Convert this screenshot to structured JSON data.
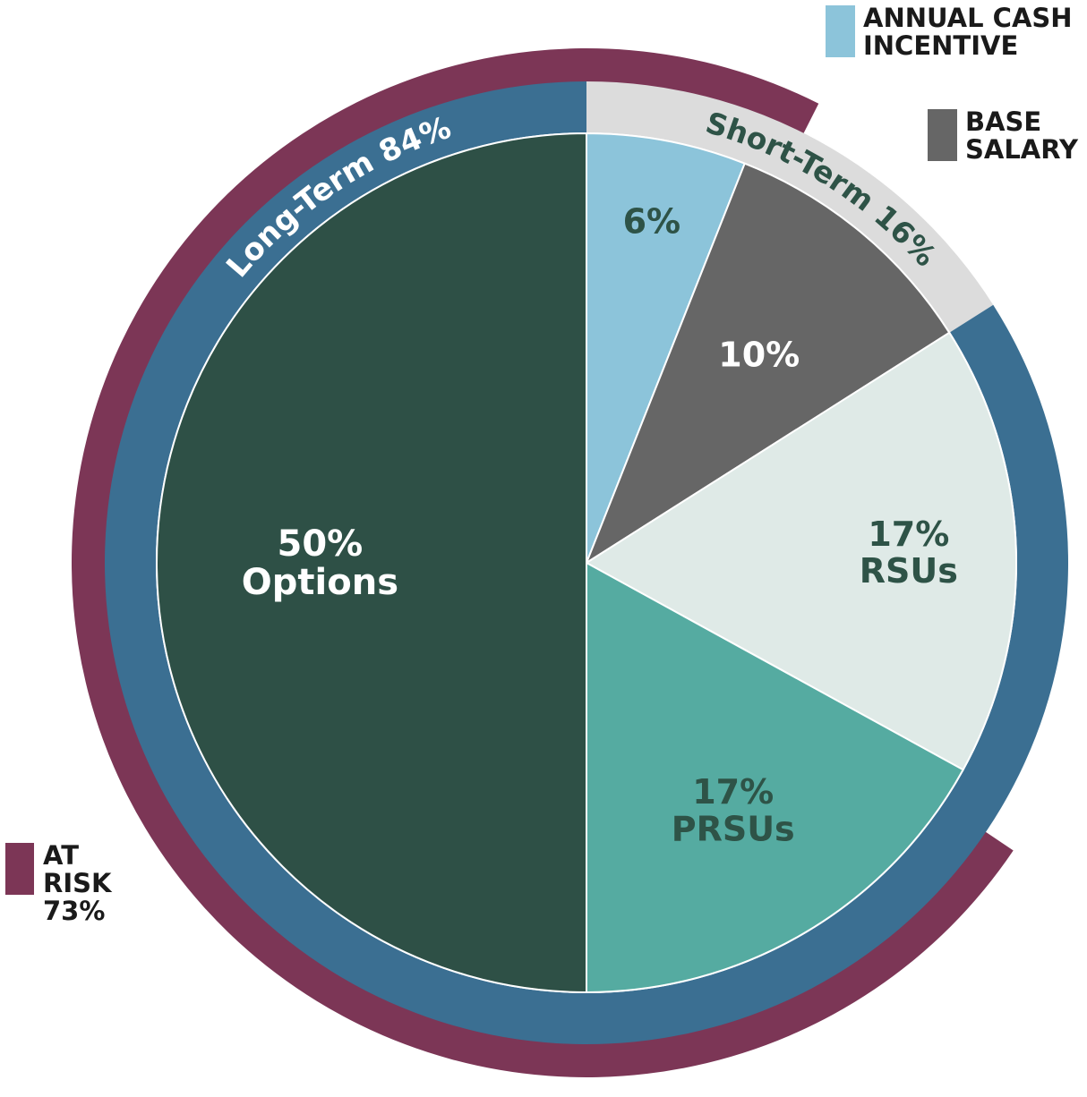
{
  "chart_data": {
    "type": "pie",
    "title": "",
    "slices": [
      {
        "name": "Annual Cash Incentive",
        "value": 6,
        "label_lines": [
          "6%"
        ],
        "color": "#8cc4da",
        "text_color": "#2e5347"
      },
      {
        "name": "Base Salary",
        "value": 10,
        "label_lines": [
          "10%"
        ],
        "color": "#666666",
        "text_color": "#ffffff"
      },
      {
        "name": "RSUs",
        "value": 17,
        "label_lines": [
          "17%",
          "RSUs"
        ],
        "color": "#dfeae7",
        "text_color": "#2e5347"
      },
      {
        "name": "PRSUs",
        "value": 17,
        "label_lines": [
          "17%",
          "PRSUs"
        ],
        "color": "#55aba1",
        "text_color": "#2e5347"
      },
      {
        "name": "Options",
        "value": 50,
        "label_lines": [
          "50%",
          "Options"
        ],
        "color": "#2e5046",
        "text_color": "#ffffff"
      }
    ],
    "rings": {
      "short_term": {
        "label": "Short-Term 16%",
        "value": 16,
        "color": "#dcdcdc",
        "text_color": "#2e5347"
      },
      "long_term": {
        "label": "Long-Term 84%",
        "value": 84,
        "color": "#3b6f92",
        "text_color": "#ffffff"
      },
      "at_risk": {
        "value": 73,
        "color": "#7c3656"
      }
    },
    "legend": [
      {
        "lines": [
          "ANNUAL CASH",
          "INCENTIVE"
        ],
        "color": "#8cc4da"
      },
      {
        "lines": [
          "BASE",
          "SALARY"
        ],
        "color": "#666666"
      },
      {
        "lines": [
          "AT",
          "RISK",
          "73%"
        ],
        "color": "#7c3656"
      }
    ]
  }
}
